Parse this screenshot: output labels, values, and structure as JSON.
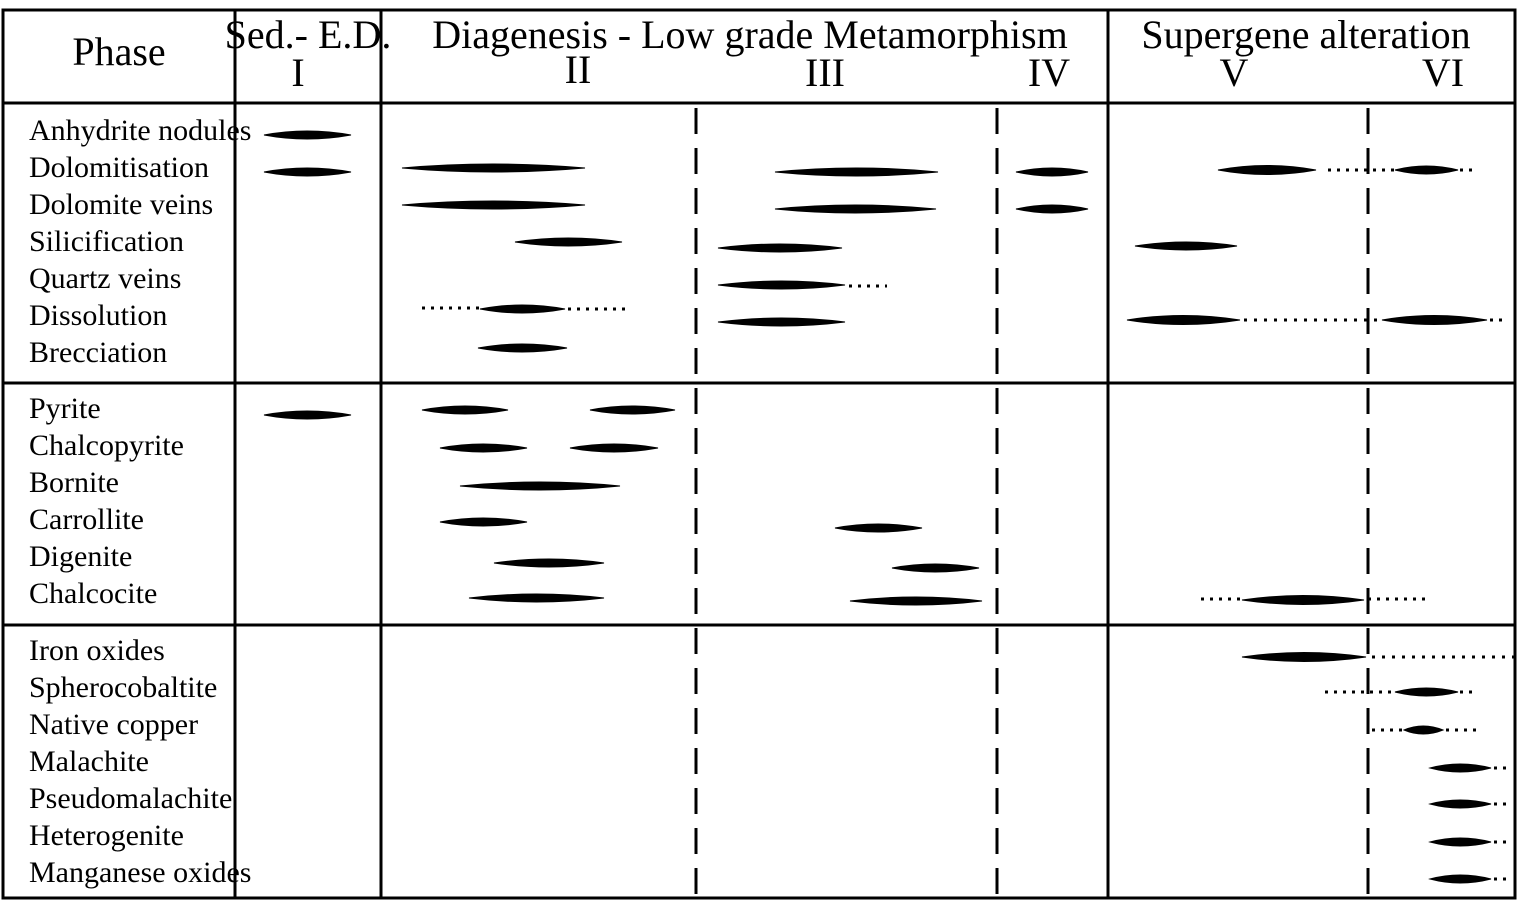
{
  "header": {
    "phase_label": "Phase",
    "sed_label": "Sed.- E.D.",
    "diagenesis_label": "Diagenesis - Low grade Metamorphism",
    "supergene_label": "Supergene alteration",
    "stage_numerals": [
      "I",
      "II",
      "III",
      "IV",
      "V",
      "VI"
    ]
  },
  "groups": [
    {
      "rows": [
        {
          "label": "Anhydrite nodules"
        },
        {
          "label": "Dolomitisation"
        },
        {
          "label": "Dolomite veins"
        },
        {
          "label": "Silicification"
        },
        {
          "label": "Quartz veins"
        },
        {
          "label": "Dissolution"
        },
        {
          "label": "Brecciation"
        }
      ]
    },
    {
      "rows": [
        {
          "label": "Pyrite"
        },
        {
          "label": "Chalcopyrite"
        },
        {
          "label": "Bornite"
        },
        {
          "label": "Carrollite"
        },
        {
          "label": "Digenite"
        },
        {
          "label": "Chalcocite"
        }
      ]
    },
    {
      "rows": [
        {
          "label": "Iron oxides"
        },
        {
          "label": "Spherocobaltite"
        },
        {
          "label": "Native copper"
        },
        {
          "label": "Malachite"
        },
        {
          "label": "Pseudomalachite"
        },
        {
          "label": "Heterogenite"
        },
        {
          "label": "Manganese oxides"
        }
      ]
    }
  ]
}
